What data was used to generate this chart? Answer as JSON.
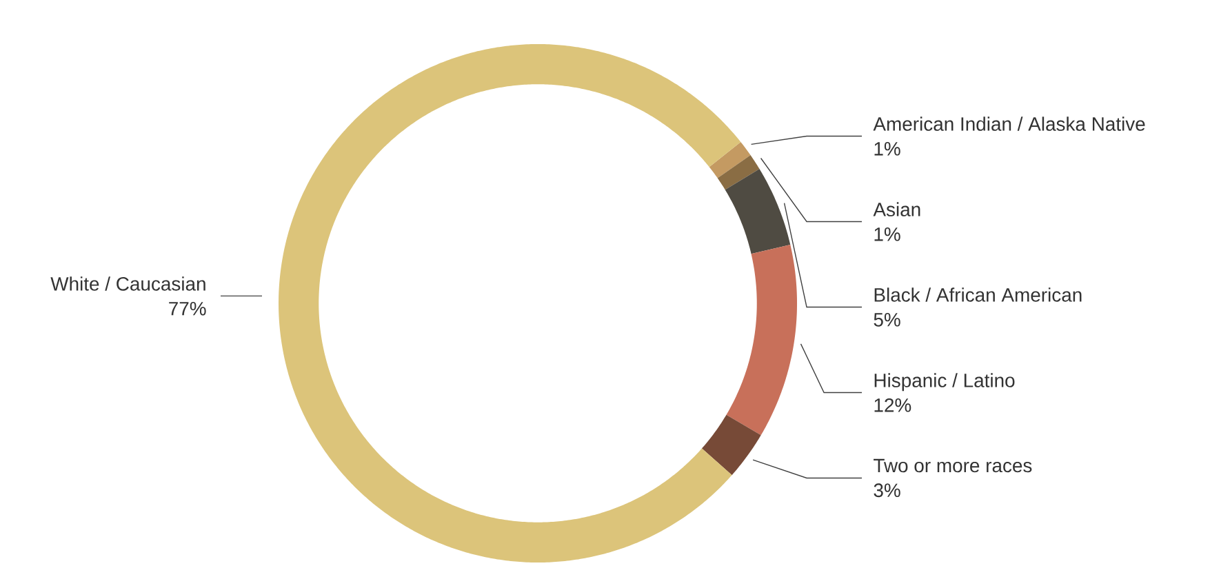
{
  "chart_data": {
    "type": "donut",
    "categories": [
      "American Indian / Alaska Native",
      "Asian",
      "Black / African American",
      "Hispanic / Latino",
      "Two or more races",
      "White / Caucasian"
    ],
    "values": [
      1,
      1,
      5,
      12,
      3,
      77
    ],
    "value_labels": [
      "1%",
      "1%",
      "5%",
      "12%",
      "3%",
      "77%"
    ],
    "colors": [
      "#c49a62",
      "#8a6d44",
      "#4f4b42",
      "#c8705a",
      "#774a37",
      "#dcc47a"
    ]
  }
}
